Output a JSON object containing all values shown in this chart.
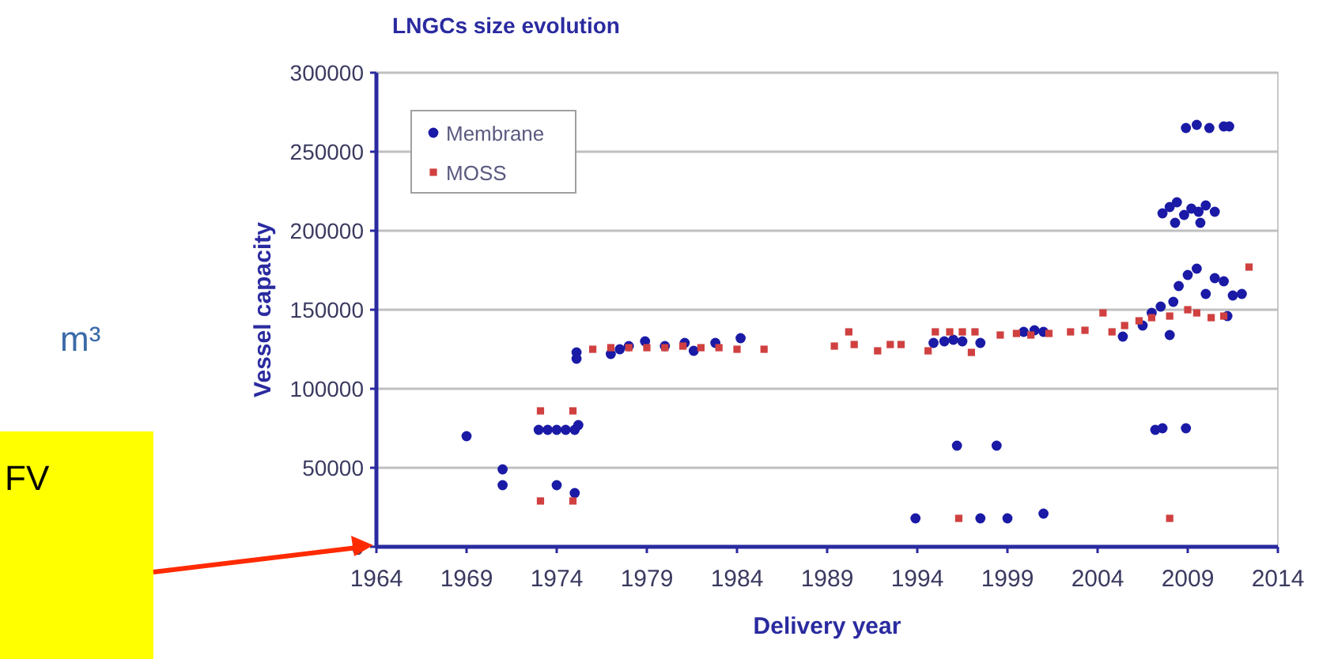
{
  "chart_data": {
    "type": "scatter",
    "title": "LNGCs  size evolution",
    "xlabel": "Delivery year",
    "ylabel": "Vessel capacity",
    "annotations": [
      "m³",
      "FV"
    ],
    "xlim": [
      1964,
      2014
    ],
    "xticks": [
      1964,
      1969,
      1974,
      1979,
      1984,
      1989,
      1994,
      1999,
      2004,
      2009,
      2014
    ],
    "ylim": [
      0,
      300000
    ],
    "yticks": [
      0,
      50000,
      100000,
      150000,
      200000,
      250000,
      300000
    ],
    "grid": "y",
    "legend": "top left",
    "series": [
      {
        "name": "Membrane",
        "color": "#1a1aa6",
        "marker": "circle",
        "x": [
          1969,
          1971,
          1971,
          1973,
          1973.5,
          1974,
          1974.5,
          1975,
          1975.2,
          1974,
          1975,
          1975.1,
          1975.1,
          1977,
          1977.5,
          1978,
          1978.9,
          1980,
          1981.1,
          1981.6,
          1982.8,
          1984.2,
          1994.9,
          1995.5,
          1996,
          1996.5,
          1997.5,
          1999.9,
          2000.5,
          2001,
          2005.4,
          2006.5,
          2007,
          2007.5,
          2008,
          2008.2,
          2008.5,
          2009,
          2009.5,
          2010,
          2010.5,
          2011,
          2011.5,
          2011.2,
          2012,
          2007.6,
          2008,
          2008.4,
          2008.8,
          2009.2,
          2009.6,
          2010,
          2010.5,
          2008.3,
          2009.7,
          2008.9,
          2009.5,
          2010.2,
          2011,
          2011.3,
          2007.2,
          2007.6,
          2008.9,
          1996.2,
          1998.4,
          1993.9,
          1997.5,
          1999,
          2001
        ],
        "values": [
          70000,
          49000,
          39000,
          74000,
          74000,
          74000,
          74000,
          74000,
          77000,
          39000,
          34000,
          123000,
          119000,
          122000,
          125000,
          127000,
          130000,
          127000,
          129000,
          124000,
          129000,
          132000,
          129000,
          130000,
          131000,
          130000,
          129000,
          136000,
          137000,
          136000,
          133000,
          140000,
          148000,
          152000,
          134000,
          155000,
          165000,
          172000,
          176000,
          160000,
          170000,
          168000,
          159000,
          146000,
          160000,
          211000,
          215000,
          218000,
          210000,
          214000,
          212000,
          216000,
          212000,
          205000,
          205000,
          265000,
          267000,
          265000,
          266000,
          266000,
          74000,
          75000,
          75000,
          64000,
          64000,
          18000,
          18000,
          18000,
          21000
        ]
      },
      {
        "name": "MOSS",
        "color": "#d04040",
        "marker": "square",
        "x": [
          1973.1,
          1974.9,
          1973.1,
          1974.9,
          1976,
          1977,
          1978,
          1979,
          1980,
          1981,
          1982,
          1983,
          1984,
          1985.5,
          1989.4,
          1990.2,
          1990.5,
          1991.8,
          1992.5,
          1993.1,
          1994.6,
          1995,
          1995.8,
          1996.5,
          1997.2,
          1997,
          1998.6,
          1999.5,
          2000.3,
          2001.3,
          2002.5,
          2003.3,
          2004.3,
          2004.8,
          2005.5,
          2006.3,
          2007,
          2008,
          2009,
          2009.5,
          2010.3,
          2011,
          2012.4,
          1996.3,
          2008
        ],
        "values": [
          86000,
          86000,
          29000,
          29000,
          125000,
          126000,
          126000,
          126000,
          126000,
          127000,
          126000,
          126000,
          125000,
          125000,
          127000,
          136000,
          128000,
          124000,
          128000,
          128000,
          124000,
          136000,
          136000,
          136000,
          136000,
          123000,
          134000,
          135000,
          134000,
          135000,
          136000,
          137000,
          148000,
          136000,
          140000,
          143000,
          145000,
          146000,
          150000,
          148000,
          145000,
          146000,
          177000,
          18000,
          18000
        ]
      }
    ]
  }
}
